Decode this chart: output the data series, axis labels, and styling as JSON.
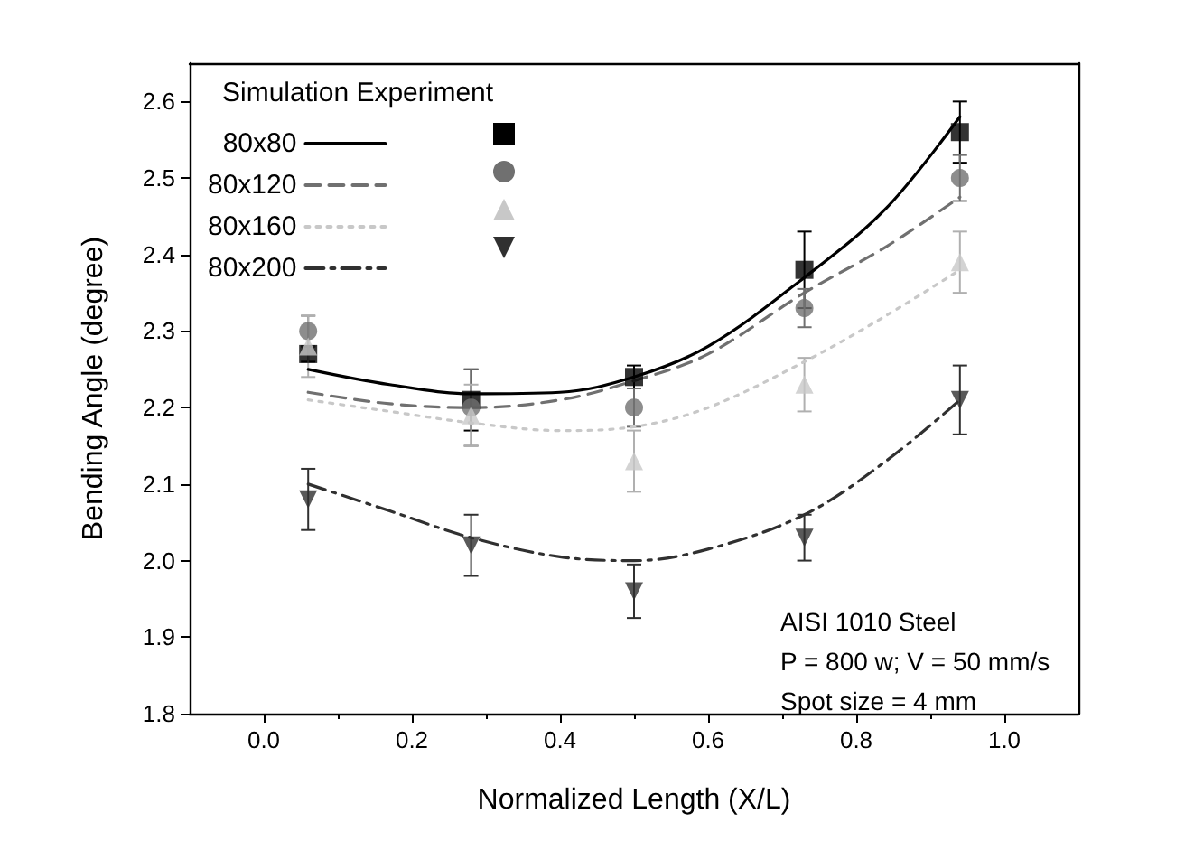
{
  "chart_data": {
    "type": "line",
    "xlabel": "Normalized Length (X/L)",
    "ylabel": "Bending Angle (degree)",
    "legend_title": "Simulation Experiment",
    "legend": "top left",
    "grid": false,
    "xlim": [
      -0.1,
      1.1
    ],
    "xticks": [
      {
        "value": 0,
        "label": "0.0"
      },
      0.2,
      0.4,
      0.6,
      0.8,
      {
        "value": 1,
        "label": "1.0"
      }
    ],
    "ylim": [
      1.8,
      2.65
    ],
    "yticks": [
      1.8,
      1.9,
      {
        "value": 2,
        "label": "2.0"
      },
      2.1,
      2.2,
      2.3,
      2.4,
      2.5,
      2.6
    ],
    "annotations": [
      "AISI 1010 Steel",
      "P = 800 w; V = 50 mm/s",
      "Spot size = 4 mm"
    ],
    "series": [
      {
        "name": "80x80",
        "color": "#000000",
        "line_style": "solid",
        "marker": "none",
        "x": [
          0.06,
          0.17,
          0.28,
          0.4,
          0.5,
          0.6,
          0.73,
          0.84,
          0.94
        ],
        "values": [
          2.25,
          2.23,
          2.218,
          2.22,
          2.24,
          2.28,
          2.37,
          2.46,
          2.58
        ]
      },
      {
        "name": "80x120",
        "color": "#707070",
        "line_style": "dashed",
        "marker": "none",
        "x": [
          0.06,
          0.17,
          0.28,
          0.4,
          0.5,
          0.6,
          0.73,
          0.84,
          0.94
        ],
        "values": [
          2.22,
          2.205,
          2.2,
          2.21,
          2.235,
          2.27,
          2.35,
          2.41,
          2.475
        ]
      },
      {
        "name": "80x160",
        "color": "#c8c8c8",
        "line_style": "dotted",
        "marker": "none",
        "x": [
          0.06,
          0.17,
          0.28,
          0.4,
          0.5,
          0.6,
          0.73,
          0.84,
          0.94
        ],
        "values": [
          2.21,
          2.195,
          2.18,
          2.17,
          2.175,
          2.2,
          2.26,
          2.32,
          2.38
        ]
      },
      {
        "name": "80x200",
        "color": "#303030",
        "line_style": "dashdot",
        "marker": "none",
        "x": [
          0.06,
          0.17,
          0.28,
          0.4,
          0.5,
          0.6,
          0.73,
          0.84,
          0.94
        ],
        "values": [
          2.1,
          2.065,
          2.03,
          2.005,
          2.0,
          2.015,
          2.06,
          2.13,
          2.21
        ]
      },
      {
        "type": "scatter",
        "color": "#000000",
        "marker": "square",
        "x": [
          0.06,
          0.28,
          0.5,
          0.73,
          0.94
        ],
        "values": [
          2.27,
          2.21,
          2.24,
          2.38,
          2.56
        ],
        "errors": [
          0.01,
          0.04,
          0.015,
          0.05,
          0.04
        ]
      },
      {
        "type": "scatter",
        "color": "#707070",
        "marker": "circle",
        "x": [
          0.06,
          0.28,
          0.5,
          0.73,
          0.94
        ],
        "values": [
          2.3,
          2.2,
          2.2,
          2.33,
          2.5
        ],
        "errors": [
          0.02,
          0.05,
          0.025,
          0.025,
          0.03
        ]
      },
      {
        "type": "scatter",
        "color": "#c8c8c8",
        "marker": "triangle",
        "x": [
          0.06,
          0.28,
          0.5,
          0.73,
          0.94
        ],
        "values": [
          2.28,
          2.19,
          2.13,
          2.23,
          2.39
        ],
        "errors": [
          0.04,
          0.04,
          0.04,
          0.035,
          0.04
        ]
      },
      {
        "type": "scatter",
        "color": "#303030",
        "marker": "triangle-down",
        "x": [
          0.06,
          0.28,
          0.5,
          0.73,
          0.94
        ],
        "values": [
          2.08,
          2.02,
          1.96,
          2.03,
          2.21
        ],
        "errors": [
          0.04,
          0.04,
          0.035,
          0.03,
          0.045
        ]
      }
    ]
  }
}
